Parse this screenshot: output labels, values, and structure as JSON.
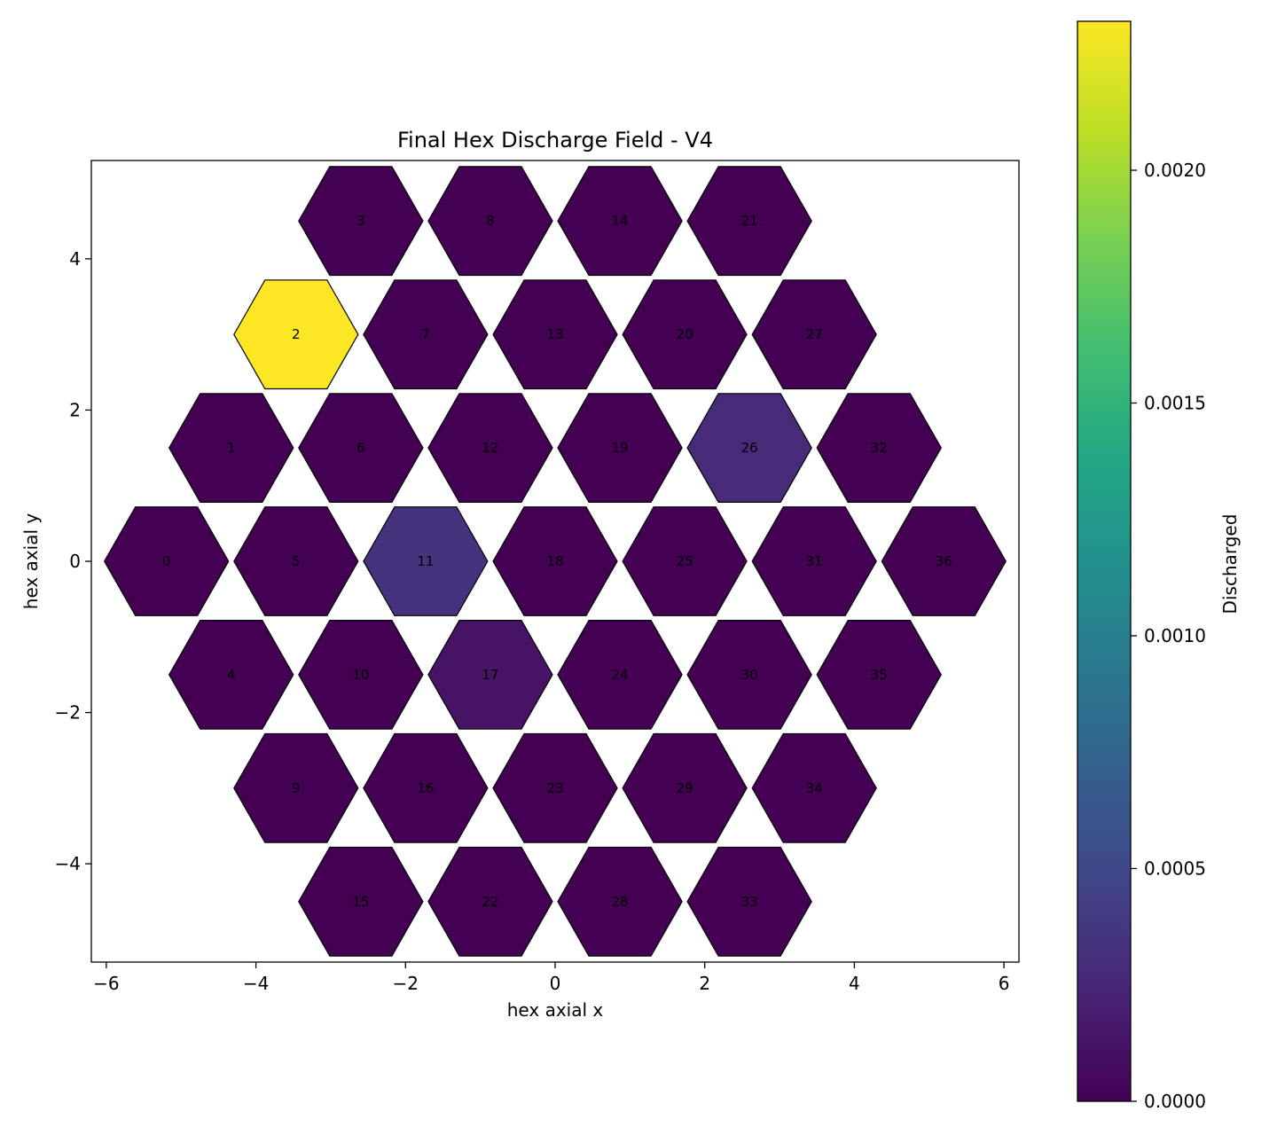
{
  "chart_data": {
    "type": "heatmap",
    "title": "Final Hex Discharge Field - V4",
    "xlabel": "hex axial x",
    "ylabel": "hex axial y",
    "xlim": [
      -6.2,
      6.2
    ],
    "ylim": [
      -5.3,
      5.3
    ],
    "x_ticks": [
      -6,
      -4,
      -2,
      0,
      2,
      4,
      6
    ],
    "y_ticks": [
      -4,
      -2,
      0,
      2,
      4
    ],
    "colorbar": {
      "label": "Discharged",
      "min": 0.0,
      "max": 0.00232,
      "ticks": [
        0.0,
        0.0005,
        0.001,
        0.0015,
        0.002
      ],
      "tick_labels": [
        "0.0000",
        "0.0005",
        "0.0010",
        "0.0015",
        "0.0020"
      ],
      "colormap": "viridis"
    },
    "cells": [
      {
        "id": "0",
        "x": -5.196,
        "y": 0.0,
        "value": 0.0
      },
      {
        "id": "1",
        "x": -4.33,
        "y": 1.5,
        "value": 0.0
      },
      {
        "id": "2",
        "x": -3.464,
        "y": 3.0,
        "value": 0.00232
      },
      {
        "id": "3",
        "x": -2.598,
        "y": 4.5,
        "value": 0.0
      },
      {
        "id": "4",
        "x": -4.33,
        "y": -1.5,
        "value": 0.0
      },
      {
        "id": "5",
        "x": -3.464,
        "y": 0.0,
        "value": 0.0
      },
      {
        "id": "6",
        "x": -2.598,
        "y": 1.5,
        "value": 0.0
      },
      {
        "id": "7",
        "x": -1.732,
        "y": 3.0,
        "value": 0.0
      },
      {
        "id": "8",
        "x": -0.866,
        "y": 4.5,
        "value": 0.0
      },
      {
        "id": "9",
        "x": -3.464,
        "y": -3.0,
        "value": 0.0
      },
      {
        "id": "10",
        "x": -2.598,
        "y": -1.5,
        "value": 0.0
      },
      {
        "id": "11",
        "x": -1.732,
        "y": 0.0,
        "value": 0.00034
      },
      {
        "id": "12",
        "x": -0.866,
        "y": 1.5,
        "value": 0.0
      },
      {
        "id": "13",
        "x": 0.0,
        "y": 3.0,
        "value": 0.0
      },
      {
        "id": "14",
        "x": 0.866,
        "y": 4.5,
        "value": 0.0
      },
      {
        "id": "15",
        "x": -2.598,
        "y": -4.5,
        "value": 0.0
      },
      {
        "id": "16",
        "x": -1.732,
        "y": -3.0,
        "value": 0.0
      },
      {
        "id": "17",
        "x": -0.866,
        "y": -1.5,
        "value": 0.00012
      },
      {
        "id": "18",
        "x": 0.0,
        "y": 0.0,
        "value": 0.0
      },
      {
        "id": "19",
        "x": 0.866,
        "y": 1.5,
        "value": 0.0
      },
      {
        "id": "20",
        "x": 1.732,
        "y": 3.0,
        "value": 0.0
      },
      {
        "id": "21",
        "x": 2.598,
        "y": 4.5,
        "value": 0.0
      },
      {
        "id": "22",
        "x": -0.866,
        "y": -4.5,
        "value": 0.0
      },
      {
        "id": "23",
        "x": 0.0,
        "y": -3.0,
        "value": 0.0
      },
      {
        "id": "24",
        "x": 0.866,
        "y": -1.5,
        "value": 0.0
      },
      {
        "id": "25",
        "x": 1.732,
        "y": 0.0,
        "value": 0.0
      },
      {
        "id": "26",
        "x": 2.598,
        "y": 1.5,
        "value": 0.00028
      },
      {
        "id": "27",
        "x": 3.464,
        "y": 3.0,
        "value": 0.0
      },
      {
        "id": "28",
        "x": 0.866,
        "y": -4.5,
        "value": 0.0
      },
      {
        "id": "29",
        "x": 1.732,
        "y": -3.0,
        "value": 0.0
      },
      {
        "id": "30",
        "x": 2.598,
        "y": -1.5,
        "value": 0.0
      },
      {
        "id": "31",
        "x": 3.464,
        "y": 0.0,
        "value": 0.0
      },
      {
        "id": "32",
        "x": 4.33,
        "y": 1.5,
        "value": 0.0
      },
      {
        "id": "33",
        "x": 2.598,
        "y": -4.5,
        "value": 0.0
      },
      {
        "id": "34",
        "x": 3.464,
        "y": -3.0,
        "value": 0.0
      },
      {
        "id": "35",
        "x": 4.33,
        "y": -1.5,
        "value": 0.0
      },
      {
        "id": "36",
        "x": 5.196,
        "y": 0.0,
        "value": 0.0
      }
    ]
  }
}
